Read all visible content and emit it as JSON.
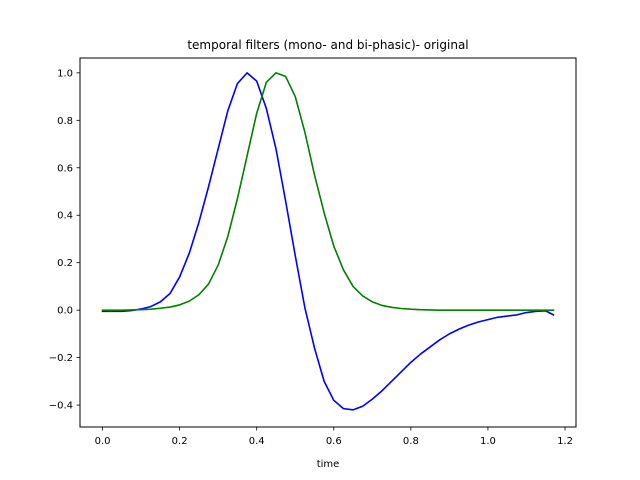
{
  "chart_data": {
    "type": "line",
    "title": "temporal filters (mono- and bi-phasic)- original",
    "xlabel": "time",
    "ylabel": "",
    "xlim": [
      -0.0585,
      1.2285
    ],
    "ylim": [
      -0.4924,
      1.0626
    ],
    "xticks": [
      0.0,
      0.2,
      0.4,
      0.6,
      0.8,
      1.0,
      1.2
    ],
    "xtick_labels": [
      "0.0",
      "0.2",
      "0.4",
      "0.6",
      "0.8",
      "1.0",
      "1.2"
    ],
    "yticks": [
      -0.4,
      -0.2,
      0.0,
      0.2,
      0.4,
      0.6,
      0.8,
      1.0
    ],
    "ytick_labels": [
      "−0.4",
      "−0.2",
      "0.0",
      "0.2",
      "0.4",
      "0.6",
      "0.8",
      "1.0"
    ],
    "grid": false,
    "legend": "none",
    "x": [
      0.0,
      0.025,
      0.05,
      0.075,
      0.1,
      0.125,
      0.15,
      0.175,
      0.2,
      0.225,
      0.25,
      0.275,
      0.3,
      0.325,
      0.35,
      0.375,
      0.4,
      0.425,
      0.45,
      0.475,
      0.5,
      0.525,
      0.55,
      0.575,
      0.6,
      0.625,
      0.65,
      0.675,
      0.7,
      0.725,
      0.75,
      0.775,
      0.8,
      0.825,
      0.85,
      0.875,
      0.9,
      0.925,
      0.95,
      0.975,
      1.0,
      1.025,
      1.05,
      1.075,
      1.1,
      1.125,
      1.15,
      1.17
    ],
    "series": [
      {
        "color": "#0000ff",
        "values": [
          -0.005,
          -0.005,
          -0.005,
          -0.002,
          0.005,
          0.015,
          0.035,
          0.07,
          0.14,
          0.24,
          0.37,
          0.52,
          0.68,
          0.84,
          0.955,
          1.0,
          0.965,
          0.85,
          0.68,
          0.46,
          0.23,
          0.01,
          -0.16,
          -0.3,
          -0.38,
          -0.415,
          -0.42,
          -0.405,
          -0.375,
          -0.34,
          -0.3,
          -0.26,
          -0.22,
          -0.185,
          -0.155,
          -0.125,
          -0.1,
          -0.08,
          -0.063,
          -0.05,
          -0.04,
          -0.03,
          -0.025,
          -0.02,
          -0.01,
          -0.005,
          -0.003,
          -0.02
        ]
      },
      {
        "color": "#008000",
        "values": [
          0.0,
          0.0,
          0.0,
          0.001,
          0.002,
          0.004,
          0.008,
          0.013,
          0.022,
          0.038,
          0.065,
          0.11,
          0.19,
          0.31,
          0.47,
          0.65,
          0.83,
          0.96,
          1.0,
          0.985,
          0.9,
          0.75,
          0.57,
          0.41,
          0.27,
          0.17,
          0.1,
          0.06,
          0.035,
          0.02,
          0.012,
          0.007,
          0.004,
          0.002,
          0.001,
          0.0,
          0.0,
          0.0,
          0.0,
          0.0,
          0.0,
          0.0,
          0.0,
          0.0,
          0.0,
          0.0,
          0.0,
          0.0
        ]
      }
    ]
  }
}
